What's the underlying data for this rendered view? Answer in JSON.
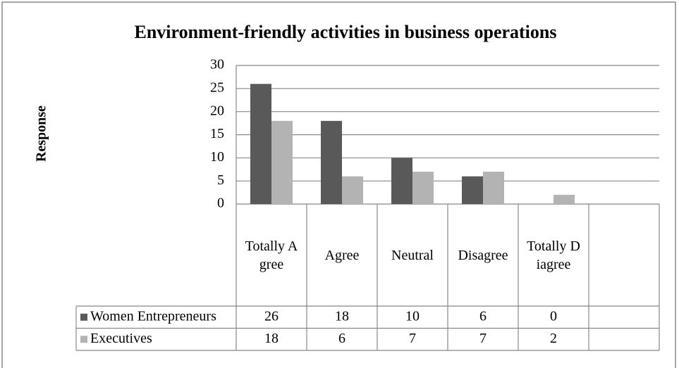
{
  "chart_data": {
    "type": "bar",
    "title": "Environment-friendly activities in business operations",
    "y_label": "Response",
    "categories": [
      "Totally Agree",
      "Agree",
      "Neutral",
      "Disagree",
      "Totally Diagree",
      null
    ],
    "series": [
      {
        "name": "Women Entrepreneurs",
        "color": "#595959",
        "values": [
          26,
          18,
          10,
          6,
          0,
          null
        ]
      },
      {
        "name": "Executives",
        "color": "#b3b3b3",
        "values": [
          18,
          6,
          7,
          7,
          2,
          null
        ]
      }
    ],
    "ylim": [
      0,
      30
    ],
    "yticks": [
      0,
      5,
      10,
      15,
      20,
      25,
      30
    ],
    "grid": true,
    "data_table": true
  }
}
